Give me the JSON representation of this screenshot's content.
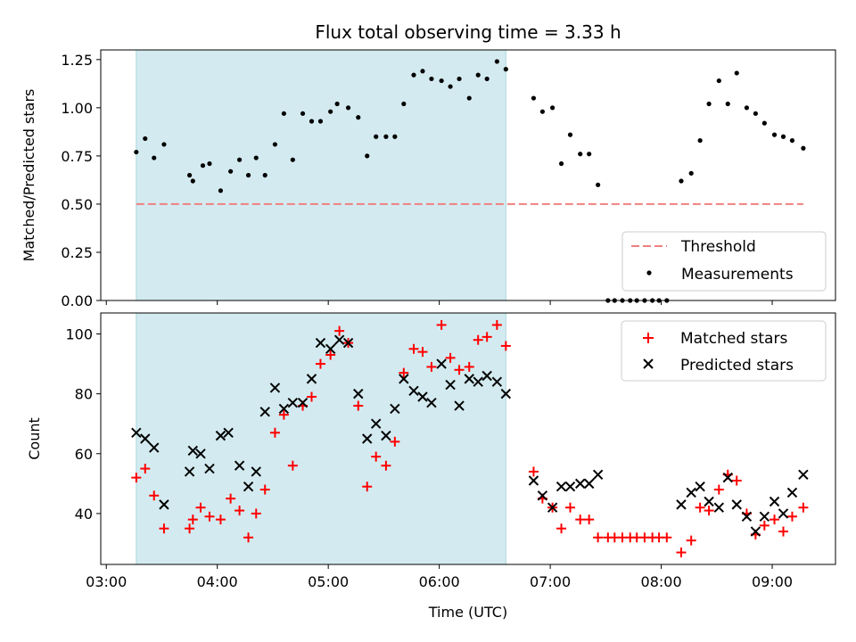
{
  "chart_data": [
    {
      "type": "scatter",
      "title": "Flux total observing time = 3.33 h",
      "xlabel": "",
      "ylabel": "Matched/Predicted stars",
      "ylim": [
        0,
        1.3
      ],
      "yticks": [
        "0.00",
        "0.25",
        "0.50",
        "0.75",
        "1.00",
        "1.25"
      ],
      "ytick_values": [
        0,
        0.25,
        0.5,
        0.75,
        1.0,
        1.25
      ],
      "x_unit": "hours UTC",
      "xlim": [
        2.95,
        9.57
      ],
      "shaded_region": {
        "x_start": 3.27,
        "x_end": 6.6,
        "color": "#d3ebf0"
      },
      "threshold": {
        "name": "Threshold",
        "value": 0.5,
        "x_start": 3.27,
        "x_end": 9.28,
        "color": "#f08080"
      },
      "legend": {
        "placement": "lower-right",
        "entries": [
          "Threshold",
          "Measurements"
        ]
      },
      "series": [
        {
          "name": "Measurements",
          "color": "#000000",
          "x": [
            3.27,
            3.35,
            3.43,
            3.52,
            3.75,
            3.78,
            3.87,
            3.93,
            4.03,
            4.12,
            4.2,
            4.28,
            4.35,
            4.43,
            4.52,
            4.6,
            4.68,
            4.77,
            4.85,
            4.93,
            5.02,
            5.08,
            5.18,
            5.27,
            5.35,
            5.43,
            5.52,
            5.6,
            5.68,
            5.77,
            5.85,
            5.93,
            6.02,
            6.1,
            6.18,
            6.27,
            6.35,
            6.43,
            6.52,
            6.6,
            6.85,
            6.93,
            7.02,
            7.1,
            7.18,
            7.27,
            7.35,
            7.43,
            7.52,
            7.58,
            7.65,
            7.72,
            7.78,
            7.85,
            7.92,
            7.98,
            8.05,
            8.18,
            8.27,
            8.35,
            8.43,
            8.52,
            8.6,
            8.68,
            8.77,
            8.85,
            8.93,
            9.02,
            9.1,
            9.18,
            9.28
          ],
          "y": [
            0.77,
            0.84,
            0.74,
            0.81,
            0.65,
            0.62,
            0.7,
            0.71,
            0.57,
            0.67,
            0.73,
            0.65,
            0.74,
            0.65,
            0.81,
            0.97,
            0.73,
            0.97,
            0.93,
            0.93,
            0.98,
            1.02,
            1.0,
            0.95,
            0.75,
            0.85,
            0.85,
            0.85,
            1.02,
            1.17,
            1.19,
            1.15,
            1.14,
            1.11,
            1.15,
            1.05,
            1.17,
            1.15,
            1.24,
            1.2,
            1.05,
            0.98,
            1.0,
            0.71,
            0.86,
            0.76,
            0.76,
            0.6,
            0.0,
            0.0,
            0.0,
            0.0,
            0.0,
            0.0,
            0.0,
            0.0,
            0.0,
            0.62,
            0.66,
            0.83,
            1.02,
            1.14,
            1.02,
            1.18,
            1.0,
            0.97,
            0.92,
            0.86,
            0.85,
            0.83,
            0.79
          ]
        }
      ]
    },
    {
      "type": "scatter",
      "title": "",
      "xlabel": "Time (UTC)",
      "ylabel": "Count",
      "ylim": [
        23,
        107
      ],
      "yticks": [
        "40",
        "60",
        "80",
        "100"
      ],
      "ytick_values": [
        40,
        60,
        80,
        100
      ],
      "x_unit": "hours UTC",
      "xlim": [
        2.95,
        9.57
      ],
      "xticks": [
        "03:00",
        "04:00",
        "05:00",
        "06:00",
        "07:00",
        "08:00",
        "09:00"
      ],
      "xtick_values": [
        3,
        4,
        5,
        6,
        7,
        8,
        9
      ],
      "shaded_region": {
        "x_start": 3.27,
        "x_end": 6.6,
        "color": "#d3ebf0"
      },
      "legend": {
        "placement": "upper-right",
        "entries": [
          "Matched stars",
          "Predicted stars"
        ]
      },
      "series": [
        {
          "name": "Matched stars",
          "marker": "plus",
          "color": "#ff0000",
          "x": [
            3.27,
            3.35,
            3.43,
            3.52,
            3.75,
            3.78,
            3.85,
            3.93,
            4.03,
            4.12,
            4.2,
            4.28,
            4.35,
            4.43,
            4.52,
            4.6,
            4.68,
            4.77,
            4.85,
            4.93,
            5.02,
            5.1,
            5.18,
            5.27,
            5.35,
            5.43,
            5.52,
            5.6,
            5.68,
            5.77,
            5.85,
            5.93,
            6.02,
            6.1,
            6.18,
            6.27,
            6.35,
            6.43,
            6.52,
            6.6,
            6.85,
            6.93,
            7.02,
            7.1,
            7.18,
            7.27,
            7.35,
            7.43,
            7.52,
            7.58,
            7.65,
            7.72,
            7.78,
            7.85,
            7.92,
            7.98,
            8.05,
            8.18,
            8.27,
            8.35,
            8.43,
            8.52,
            8.6,
            8.68,
            8.77,
            8.85,
            8.93,
            9.02,
            9.1,
            9.18,
            9.28
          ],
          "y": [
            52,
            55,
            46,
            35,
            35,
            38,
            42,
            39,
            38,
            45,
            41,
            32,
            40,
            48,
            67,
            73,
            56,
            76,
            79,
            90,
            93,
            101,
            97,
            76,
            49,
            59,
            56,
            64,
            87,
            95,
            94,
            89,
            103,
            92,
            88,
            89,
            98,
            99,
            103,
            96,
            54,
            45,
            42,
            35,
            42,
            38,
            38,
            32,
            32,
            32,
            32,
            32,
            32,
            32,
            32,
            32,
            32,
            27,
            31,
            42,
            41,
            48,
            53,
            51,
            40,
            33,
            36,
            38,
            34,
            39,
            42
          ]
        },
        {
          "name": "Predicted stars",
          "marker": "x",
          "color": "#000000",
          "x": [
            3.27,
            3.35,
            3.43,
            3.52,
            3.75,
            3.78,
            3.85,
            3.93,
            4.03,
            4.1,
            4.2,
            4.28,
            4.35,
            4.43,
            4.52,
            4.6,
            4.68,
            4.77,
            4.85,
            4.93,
            5.02,
            5.1,
            5.18,
            5.27,
            5.35,
            5.43,
            5.52,
            5.6,
            5.68,
            5.77,
            5.85,
            5.93,
            6.02,
            6.1,
            6.18,
            6.27,
            6.35,
            6.43,
            6.52,
            6.6,
            6.85,
            6.93,
            7.02,
            7.1,
            7.18,
            7.27,
            7.35,
            7.43,
            8.18,
            8.27,
            8.35,
            8.43,
            8.52,
            8.6,
            8.68,
            8.77,
            8.85,
            8.93,
            9.02,
            9.1,
            9.18,
            9.28
          ],
          "y": [
            67,
            65,
            62,
            43,
            54,
            61,
            60,
            55,
            66,
            67,
            56,
            49,
            54,
            74,
            82,
            75,
            77,
            77,
            85,
            97,
            95,
            98,
            97,
            80,
            65,
            70,
            66,
            75,
            85,
            81,
            79,
            77,
            90,
            83,
            76,
            85,
            84,
            86,
            84,
            80,
            51,
            46,
            42,
            49,
            49,
            50,
            50,
            53,
            43,
            47,
            49,
            44,
            42,
            52,
            43,
            39,
            34,
            39,
            44,
            40,
            47,
            53
          ]
        }
      ]
    }
  ]
}
